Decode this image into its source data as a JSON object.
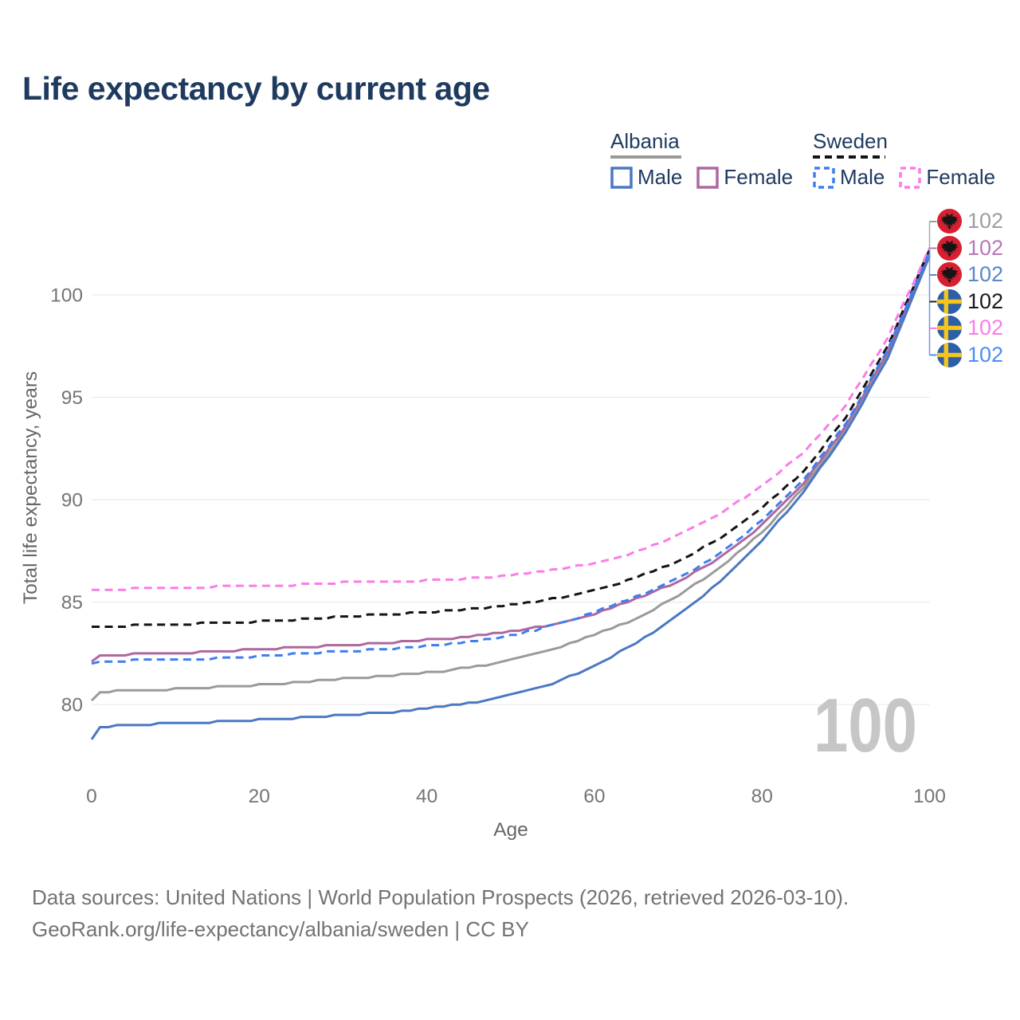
{
  "title": "Life expectancy by current age",
  "legend": {
    "groups": [
      {
        "country": "Albania",
        "line_style": "solid",
        "line_color": "#9a9a9a",
        "items": [
          {
            "label": "Male",
            "color": "#4a78c4",
            "dashed": false
          },
          {
            "label": "Female",
            "color": "#ad689e",
            "dashed": false
          }
        ]
      },
      {
        "country": "Sweden",
        "line_style": "dashed",
        "line_color": "#141414",
        "items": [
          {
            "label": "Male",
            "color": "#3f7ef0",
            "dashed": true
          },
          {
            "label": "Female",
            "color": "#fb7ce8",
            "dashed": true
          }
        ]
      }
    ]
  },
  "chart_data": {
    "type": "line",
    "title": "Life expectancy by current age",
    "xlabel": "Age",
    "ylabel": "Total life expectancy, years",
    "x_ticks": [
      0,
      20,
      40,
      60,
      80,
      100
    ],
    "y_ticks": [
      80,
      85,
      90,
      95,
      100
    ],
    "xlim": [
      0,
      100
    ],
    "ylim": [
      77.5,
      103.5
    ],
    "grid": "horizontal-only",
    "age_ticker_watermark": "100",
    "watermark_color": "#c6c6c6",
    "gridline_color": "#eaeaea",
    "tick_label_color": "#757575",
    "axis_title_color": "#666666",
    "series": [
      {
        "name": "Albania — Both sexes",
        "country": "Albania",
        "group": "Both sexes",
        "color": "#9a9a9a",
        "dashed": false,
        "flag": "albania",
        "end_label": "102",
        "end_label_color": "#9e9e9e",
        "x": [
          0,
          1,
          5,
          10,
          15,
          20,
          25,
          30,
          35,
          40,
          45,
          50,
          55,
          60,
          65,
          70,
          75,
          80,
          85,
          90,
          95,
          100
        ],
        "y": [
          80.2,
          80.6,
          80.7,
          80.75,
          80.85,
          80.95,
          81.1,
          81.25,
          81.4,
          81.55,
          81.8,
          82.15,
          82.7,
          83.4,
          84.2,
          85.3,
          86.7,
          88.4,
          90.6,
          93.4,
          97.0,
          102.0
        ]
      },
      {
        "name": "Albania — Female",
        "country": "Albania",
        "group": "Female",
        "color": "#ad689e",
        "dashed": false,
        "flag": "albania",
        "end_label": "102",
        "end_label_color": "#b678b6",
        "x": [
          0,
          1,
          5,
          10,
          15,
          20,
          25,
          30,
          35,
          40,
          45,
          50,
          55,
          60,
          65,
          70,
          75,
          80,
          85,
          90,
          95,
          100
        ],
        "y": [
          82.1,
          82.4,
          82.45,
          82.5,
          82.6,
          82.7,
          82.8,
          82.9,
          83.0,
          83.15,
          83.3,
          83.55,
          83.9,
          84.4,
          85.15,
          86.0,
          87.15,
          88.75,
          90.8,
          93.6,
          97.2,
          102.1
        ]
      },
      {
        "name": "Albania — Male",
        "country": "Albania",
        "group": "Male",
        "color": "#4a78c4",
        "dashed": false,
        "flag": "albania",
        "end_label": "102",
        "end_label_color": "#5c86ca",
        "x": [
          0,
          1,
          5,
          10,
          15,
          20,
          25,
          30,
          35,
          40,
          45,
          50,
          55,
          60,
          65,
          70,
          75,
          80,
          85,
          90,
          95,
          100
        ],
        "y": [
          78.3,
          78.9,
          79.0,
          79.1,
          79.15,
          79.25,
          79.35,
          79.5,
          79.6,
          79.8,
          80.05,
          80.45,
          81.0,
          81.9,
          83.0,
          84.35,
          86.0,
          88.0,
          90.4,
          93.3,
          96.9,
          101.9
        ]
      },
      {
        "name": "Sweden — Both sexes",
        "country": "Sweden",
        "group": "Both sexes",
        "color": "#141414",
        "dashed": true,
        "flag": "sweden",
        "end_label": "102",
        "end_label_color": "#1a1a1a",
        "x": [
          0,
          1,
          5,
          10,
          15,
          20,
          25,
          30,
          35,
          40,
          45,
          50,
          55,
          60,
          65,
          70,
          75,
          80,
          85,
          90,
          95,
          100
        ],
        "y": [
          83.75,
          83.8,
          83.85,
          83.9,
          84.0,
          84.05,
          84.15,
          84.3,
          84.4,
          84.5,
          84.65,
          84.85,
          85.15,
          85.55,
          86.2,
          87.0,
          88.1,
          89.6,
          91.4,
          94.0,
          97.5,
          102.2
        ]
      },
      {
        "name": "Sweden — Female",
        "country": "Sweden",
        "group": "Female",
        "color": "#fb7ce8",
        "dashed": true,
        "flag": "sweden",
        "end_label": "102",
        "end_label_color": "#fb7be9",
        "x": [
          0,
          1,
          5,
          10,
          15,
          20,
          25,
          30,
          35,
          40,
          45,
          50,
          55,
          60,
          65,
          70,
          75,
          80,
          85,
          90,
          95,
          100
        ],
        "y": [
          85.6,
          85.6,
          85.65,
          85.7,
          85.75,
          85.8,
          85.85,
          85.95,
          86.0,
          86.05,
          86.15,
          86.3,
          86.55,
          86.9,
          87.45,
          88.25,
          89.3,
          90.7,
          92.3,
          94.6,
          97.9,
          102.3
        ]
      },
      {
        "name": "Sweden — Male",
        "country": "Sweden",
        "group": "Male",
        "color": "#3f7ef0",
        "dashed": true,
        "flag": "sweden",
        "end_label": "102",
        "end_label_color": "#4c8df7",
        "x": [
          0,
          1,
          5,
          10,
          15,
          20,
          25,
          30,
          35,
          40,
          45,
          50,
          55,
          60,
          65,
          70,
          75,
          80,
          85,
          90,
          95,
          100
        ],
        "y": [
          82.0,
          82.1,
          82.15,
          82.2,
          82.25,
          82.35,
          82.5,
          82.6,
          82.7,
          82.85,
          83.05,
          83.35,
          83.85,
          84.5,
          85.25,
          86.15,
          87.35,
          89.0,
          91.0,
          93.7,
          97.3,
          102.1
        ]
      }
    ]
  },
  "footer": {
    "line1": "Data sources: United Nations | World Population Prospects (2026, retrieved 2026-03-10).",
    "line2": "GeoRank.org/life-expectancy/albania/sweden | CC BY"
  }
}
